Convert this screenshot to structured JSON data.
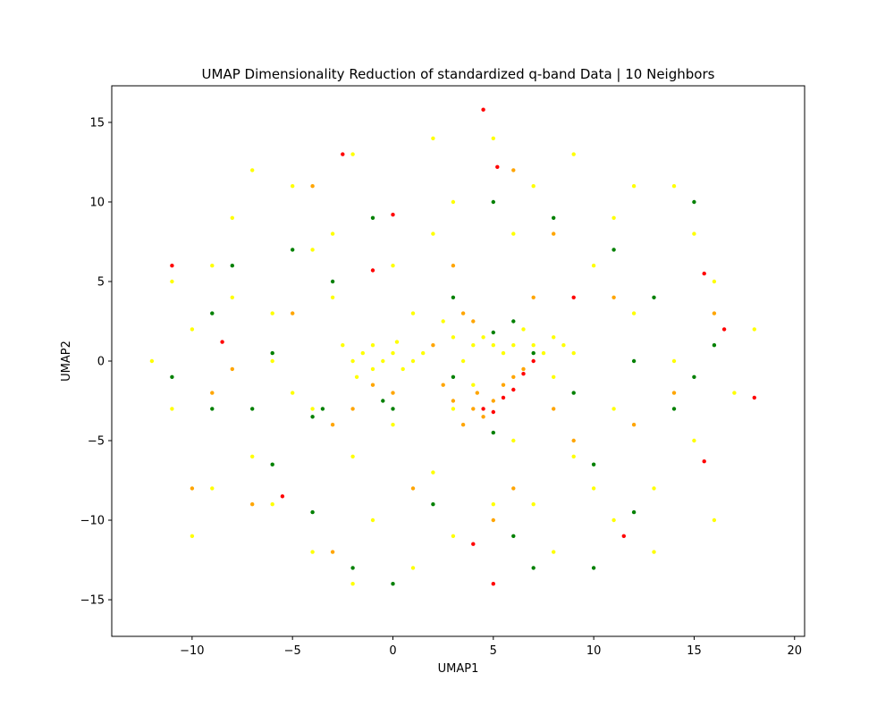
{
  "chart_data": {
    "type": "scatter",
    "title": "UMAP Dimensionality Reduction of standardized q-band Data | 10 Neighbors",
    "xlabel": "UMAP1",
    "ylabel": "UMAP2",
    "xlim": [
      -14,
      20.5
    ],
    "ylim": [
      -17.3,
      17.3
    ],
    "xticks": [
      -10,
      -5,
      0,
      5,
      10,
      15,
      20
    ],
    "yticks": [
      -15,
      -10,
      -5,
      0,
      5,
      10,
      15
    ],
    "grid": false,
    "legend": "none",
    "series": [
      {
        "color": "#ffff00",
        "points": [
          [
            -2,
            0
          ],
          [
            -1.5,
            0.5
          ],
          [
            -1,
            1
          ],
          [
            -0.5,
            0
          ],
          [
            0,
            0.5
          ],
          [
            0.5,
            -0.5
          ],
          [
            -1,
            -0.5
          ],
          [
            1,
            0
          ],
          [
            1.5,
            0.5
          ],
          [
            -2.5,
            1
          ],
          [
            -1.8,
            -1
          ],
          [
            0.2,
            1.2
          ],
          [
            4,
            1
          ],
          [
            4.5,
            1.5
          ],
          [
            5,
            1
          ],
          [
            5.5,
            0.5
          ],
          [
            6,
            1
          ],
          [
            7,
            1
          ],
          [
            7.5,
            0.5
          ],
          [
            8,
            1.5
          ],
          [
            8.5,
            1
          ],
          [
            3.5,
            0
          ],
          [
            3,
            1.5
          ],
          [
            2.5,
            2.5
          ],
          [
            6.5,
            2
          ],
          [
            9,
            0.5
          ],
          [
            -5,
            -2
          ],
          [
            -6,
            3
          ],
          [
            -8,
            4
          ],
          [
            -9,
            6
          ],
          [
            -10,
            2
          ],
          [
            -11,
            -3
          ],
          [
            -7,
            -6
          ],
          [
            -6,
            -9
          ],
          [
            -4,
            -12
          ],
          [
            -2,
            -14
          ],
          [
            1,
            -13
          ],
          [
            3,
            -11
          ],
          [
            5,
            -9
          ],
          [
            8,
            -12
          ],
          [
            11,
            -10
          ],
          [
            13,
            -8
          ],
          [
            15,
            -5
          ],
          [
            17,
            -2
          ],
          [
            18,
            2
          ],
          [
            16,
            5
          ],
          [
            15,
            8
          ],
          [
            12,
            11
          ],
          [
            9,
            13
          ],
          [
            5,
            14
          ],
          [
            2,
            14
          ],
          [
            -2,
            13
          ],
          [
            -5,
            11
          ],
          [
            -8,
            9
          ],
          [
            -9,
            -8
          ],
          [
            -10,
            -11
          ],
          [
            2,
            8
          ],
          [
            -3,
            8
          ],
          [
            6,
            8
          ],
          [
            10,
            6
          ],
          [
            12,
            3
          ],
          [
            14,
            0
          ],
          [
            11,
            -3
          ],
          [
            9,
            -6
          ],
          [
            2,
            -7
          ],
          [
            -2,
            -6
          ],
          [
            -4,
            -3
          ],
          [
            -6,
            0
          ],
          [
            -3,
            4
          ],
          [
            0,
            6
          ],
          [
            3,
            10
          ],
          [
            7,
            11
          ],
          [
            -1,
            -10
          ],
          [
            6,
            -5
          ],
          [
            10,
            -8
          ],
          [
            13,
            -12
          ],
          [
            -12,
            0
          ],
          [
            -11,
            5
          ],
          [
            7,
            -9
          ],
          [
            14,
            11
          ],
          [
            -7,
            12
          ],
          [
            0,
            -4
          ],
          [
            3,
            -3
          ],
          [
            4,
            -1.5
          ],
          [
            8,
            -1
          ],
          [
            1,
            3
          ],
          [
            -4,
            7
          ],
          [
            11,
            9
          ],
          [
            16,
            -10
          ]
        ]
      },
      {
        "color": "#ffa500",
        "points": [
          [
            4,
            -3
          ],
          [
            4.5,
            -3.5
          ],
          [
            5,
            -2.5
          ],
          [
            3.5,
            -4
          ],
          [
            4.2,
            -2
          ],
          [
            5.5,
            -1.5
          ],
          [
            6,
            -1
          ],
          [
            6.5,
            -0.5
          ],
          [
            3,
            -2.5
          ],
          [
            2.5,
            -1.5
          ],
          [
            4,
            2.5
          ],
          [
            3.5,
            3
          ],
          [
            -1,
            -1.5
          ],
          [
            5,
            -10
          ],
          [
            6,
            -8
          ],
          [
            -8,
            -0.5
          ],
          [
            -9,
            -2
          ],
          [
            8,
            -3
          ],
          [
            9,
            -5
          ],
          [
            7,
            4
          ],
          [
            3,
            6
          ],
          [
            -3,
            -4
          ],
          [
            -5,
            3
          ],
          [
            -7,
            -9
          ],
          [
            -3,
            -12
          ],
          [
            12,
            -4
          ],
          [
            14,
            -2
          ],
          [
            16,
            3
          ],
          [
            -10,
            -8
          ],
          [
            11,
            4
          ],
          [
            1,
            -8
          ],
          [
            -4,
            11
          ],
          [
            6,
            12
          ],
          [
            8,
            8
          ],
          [
            2,
            1
          ],
          [
            0,
            -2
          ],
          [
            -2,
            -3
          ]
        ]
      },
      {
        "color": "#008000",
        "points": [
          [
            -0.5,
            -2.5
          ],
          [
            0,
            -3
          ],
          [
            5,
            1.8
          ],
          [
            6,
            2.5
          ],
          [
            7,
            0.5
          ],
          [
            -4,
            -3.5
          ],
          [
            -3.5,
            -3
          ],
          [
            -6,
            0.5
          ],
          [
            -9,
            3
          ],
          [
            -6,
            -6.5
          ],
          [
            -4,
            -9.5
          ],
          [
            -2,
            -13
          ],
          [
            2,
            -9
          ],
          [
            5,
            -4.5
          ],
          [
            7,
            -13
          ],
          [
            10,
            -6.5
          ],
          [
            12,
            -9.5
          ],
          [
            14,
            -3
          ],
          [
            15,
            -1
          ],
          [
            16,
            1
          ],
          [
            13,
            4
          ],
          [
            11,
            7
          ],
          [
            8,
            9
          ],
          [
            5,
            10
          ],
          [
            3,
            4
          ],
          [
            -1,
            9
          ],
          [
            -3,
            5
          ],
          [
            -5,
            7
          ],
          [
            -8,
            6
          ],
          [
            -9,
            -3
          ],
          [
            0,
            -14
          ],
          [
            10,
            -13
          ],
          [
            15,
            10
          ],
          [
            -11,
            -1
          ],
          [
            9,
            -2
          ],
          [
            3,
            -1
          ],
          [
            6,
            -11
          ],
          [
            -7,
            -3
          ],
          [
            12,
            0
          ]
        ]
      },
      {
        "color": "#ff0000",
        "points": [
          [
            4.5,
            -3
          ],
          [
            5,
            -3.2
          ],
          [
            5.5,
            -2.3
          ],
          [
            6,
            -1.8
          ],
          [
            6.5,
            -0.8
          ],
          [
            7,
            0
          ],
          [
            5.2,
            12.2
          ],
          [
            -2.5,
            13
          ],
          [
            -11,
            6
          ],
          [
            -1,
            5.7
          ],
          [
            15.5,
            5.5
          ],
          [
            16.5,
            2
          ],
          [
            18,
            -2.3
          ],
          [
            15.5,
            -6.3
          ],
          [
            -8.5,
            1.2
          ],
          [
            11.5,
            -11
          ],
          [
            5,
            -14
          ],
          [
            4,
            -11.5
          ],
          [
            0,
            9.2
          ],
          [
            -5.5,
            -8.5
          ],
          [
            4.5,
            15.8
          ],
          [
            9,
            4
          ]
        ]
      }
    ]
  }
}
